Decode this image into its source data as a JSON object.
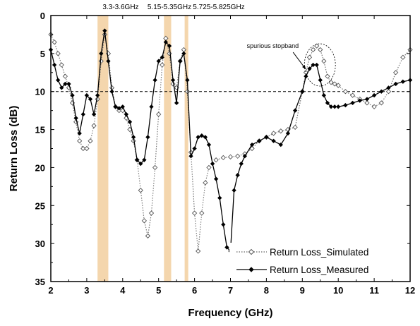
{
  "chart_data": {
    "type": "line",
    "xlabel": "Frequency (GHz)",
    "ylabel": "Return Loss (dB)",
    "xlim": [
      2,
      12
    ],
    "ylim": [
      0,
      35
    ],
    "y_inverted": true,
    "x_ticks": [
      "2",
      "3",
      "4",
      "5",
      "6",
      "7",
      "8",
      "9",
      "10",
      "11",
      "12"
    ],
    "y_ticks": [
      "0",
      "5",
      "10",
      "15",
      "20",
      "25",
      "30",
      "35"
    ],
    "reference_line": {
      "y": 10,
      "style": "dashed"
    },
    "bands": [
      {
        "label": "3.3-3.6GHz",
        "x_from": 3.3,
        "x_to": 3.6
      },
      {
        "label": "5.15-5.35GHz",
        "x_from": 5.15,
        "x_to": 5.35
      },
      {
        "label": "5.725-5.825GHz",
        "x_from": 5.725,
        "x_to": 5.825
      }
    ],
    "annotation": {
      "text": "spurious stopband",
      "x": 9.45,
      "y": 6.5
    },
    "legend_position": "bottom-right",
    "series": [
      {
        "name": "Return Loss_Simulated",
        "style": "dotted-open-diamond",
        "color": "#666666",
        "x": [
          2.0,
          2.1,
          2.2,
          2.3,
          2.4,
          2.5,
          2.6,
          2.7,
          2.8,
          2.9,
          3.0,
          3.1,
          3.2,
          3.3,
          3.4,
          3.5,
          3.6,
          3.7,
          3.8,
          3.9,
          4.0,
          4.1,
          4.2,
          4.3,
          4.4,
          4.5,
          4.6,
          4.7,
          4.8,
          4.9,
          5.0,
          5.1,
          5.2,
          5.3,
          5.4,
          5.5,
          5.6,
          5.7,
          5.8,
          5.9,
          6.0,
          6.1,
          6.2,
          6.3,
          6.4,
          6.6,
          6.8,
          7.0,
          7.2,
          7.4,
          7.6,
          7.8,
          8.0,
          8.2,
          8.4,
          8.6,
          8.8,
          9.0,
          9.1,
          9.2,
          9.3,
          9.4,
          9.5,
          9.6,
          9.7,
          9.8,
          9.9,
          10.0,
          10.2,
          10.4,
          10.6,
          10.8,
          11.0,
          11.2,
          11.4,
          11.6,
          11.8,
          12.0
        ],
        "y": [
          2.5,
          3.5,
          5.0,
          6.5,
          8.0,
          9.5,
          11.5,
          14.0,
          16.5,
          17.5,
          17.5,
          16.5,
          14.5,
          11.0,
          6.0,
          2.5,
          5.0,
          9.5,
          12.0,
          12.5,
          12.5,
          13.5,
          15.0,
          16.5,
          19.0,
          23.0,
          27.0,
          29.0,
          26.0,
          20.0,
          13.0,
          6.5,
          3.0,
          5.0,
          9.0,
          9.5,
          6.0,
          4.5,
          10.0,
          18.0,
          26.0,
          31.0,
          26.0,
          22.0,
          20.0,
          19.0,
          18.7,
          18.6,
          18.5,
          18.2,
          17.5,
          16.5,
          16.0,
          15.5,
          15.2,
          15.0,
          14.7,
          10.0,
          7.5,
          5.5,
          4.5,
          4.0,
          4.5,
          6.0,
          8.0,
          8.8,
          9.0,
          9.2,
          10.0,
          10.5,
          11.0,
          11.5,
          12.0,
          11.5,
          10.0,
          7.5,
          5.5,
          4.5
        ]
      },
      {
        "name": "Return Loss_Measured",
        "style": "solid-filled-diamond",
        "color": "#000000",
        "x": [
          2.0,
          2.1,
          2.2,
          2.3,
          2.4,
          2.5,
          2.6,
          2.7,
          2.8,
          2.9,
          3.0,
          3.1,
          3.2,
          3.3,
          3.4,
          3.5,
          3.6,
          3.7,
          3.8,
          3.9,
          4.0,
          4.1,
          4.2,
          4.3,
          4.4,
          4.5,
          4.6,
          4.7,
          4.8,
          4.9,
          5.0,
          5.1,
          5.2,
          5.3,
          5.4,
          5.5,
          5.6,
          5.7,
          5.8,
          5.9,
          6.0,
          6.1,
          6.2,
          6.3,
          6.4,
          6.5,
          6.6,
          6.7,
          6.8,
          6.9,
          7.0,
          7.1,
          7.2,
          7.3,
          7.4,
          7.6,
          7.8,
          8.0,
          8.2,
          8.4,
          8.6,
          8.8,
          9.0,
          9.1,
          9.2,
          9.3,
          9.4,
          9.5,
          9.6,
          9.7,
          9.8,
          9.9,
          10.0,
          10.2,
          10.4,
          10.6,
          10.8,
          11.0,
          11.2,
          11.4,
          11.6,
          11.8,
          12.0
        ],
        "y": [
          4.5,
          6.5,
          8.5,
          9.5,
          9.0,
          9.0,
          10.5,
          13.5,
          15.5,
          13.0,
          10.5,
          11.0,
          13.0,
          10.5,
          5.0,
          2.0,
          6.0,
          10.0,
          12.0,
          12.2,
          12.0,
          13.0,
          14.0,
          16.0,
          19.0,
          19.5,
          19.0,
          16.0,
          12.0,
          8.5,
          6.0,
          5.5,
          3.5,
          4.0,
          8.5,
          11.5,
          6.0,
          5.0,
          8.5,
          18.5,
          17.5,
          16.0,
          15.8,
          16.0,
          17.0,
          19.5,
          21.5,
          24.0,
          27.5,
          30.5,
          31.0,
          23.0,
          21.0,
          19.5,
          18.5,
          17.0,
          16.5,
          16.0,
          16.5,
          17.0,
          15.5,
          12.5,
          10.0,
          8.0,
          7.0,
          6.5,
          6.5,
          8.5,
          10.5,
          11.5,
          12.0,
          12.0,
          12.0,
          11.8,
          11.5,
          11.2,
          11.0,
          10.5,
          10.0,
          9.5,
          9.0,
          8.7,
          8.5
        ]
      }
    ]
  }
}
